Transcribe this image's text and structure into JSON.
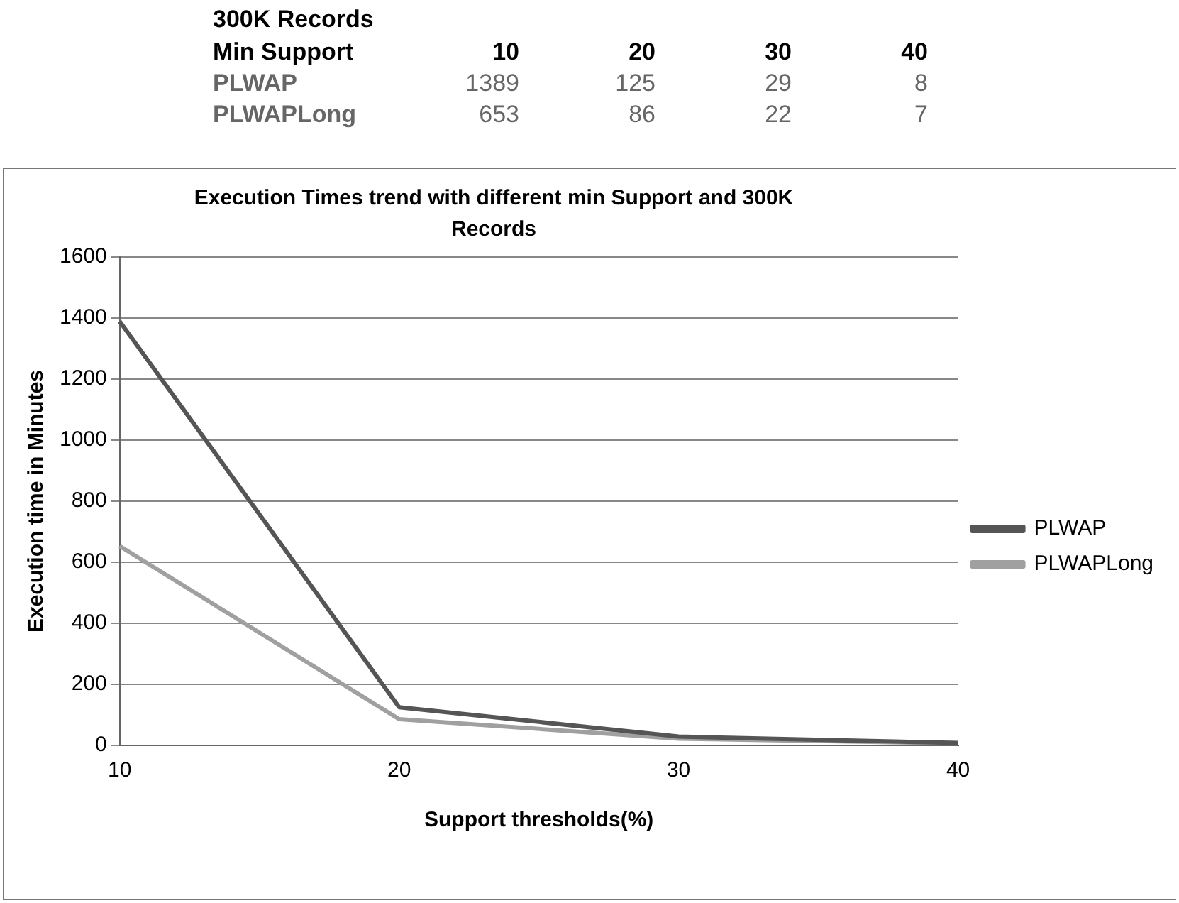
{
  "chart_data": [
    {
      "type": "heatmap",
      "annotations": [
        "300K Records",
        "Min Support"
      ],
      "categories": [
        "10",
        "20",
        "30",
        "40"
      ],
      "y_categories": [
        "PLWAP",
        "PLWAPLong"
      ],
      "cells": [
        [
          1389,
          125,
          29,
          8
        ],
        [
          653,
          86,
          22,
          7
        ]
      ],
      "data_labels": true
    },
    {
      "type": "line",
      "title": "Execution Times trend with different min Support and 300K Records",
      "xlabel": "Support thresholds(%)",
      "ylabel": "Execution time in Minutes",
      "categories": [
        "10",
        "20",
        "30",
        "40"
      ],
      "series": [
        {
          "name": "PLWAP",
          "color": "#555555",
          "values": [
            1389,
            125,
            29,
            8
          ]
        },
        {
          "name": "PLWAPLong",
          "color": "#a0a0a0",
          "values": [
            653,
            86,
            22,
            7
          ]
        }
      ],
      "ylim": [
        0,
        1600
      ],
      "yticks": [
        0,
        200,
        400,
        600,
        800,
        1000,
        1200,
        1400,
        1600
      ],
      "grid": "y",
      "legend": "right",
      "marker": "none",
      "line_style": "solid"
    }
  ]
}
